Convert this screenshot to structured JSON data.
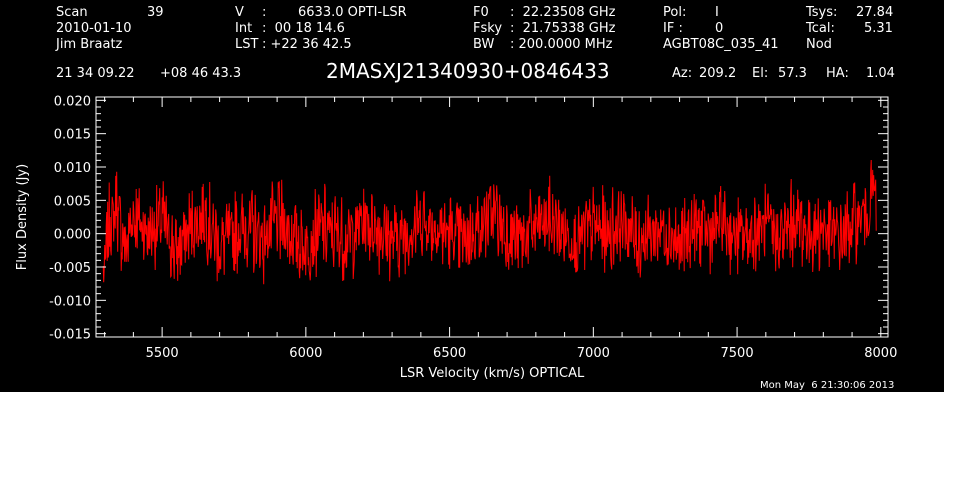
{
  "header": {
    "scan_label": "Scan",
    "scan_number": "39",
    "date": "2010-01-10",
    "observer": "Jim Braatz",
    "v_label": "V",
    "v_sep": ":",
    "v_value": "6633.0 OPTI-LSR",
    "int_label": "Int",
    "int_value": ":  00 18 14.6",
    "lst_label": "LST",
    "lst_value": ": +22 36 42.5",
    "f0_label": "F0",
    "f0_value": ":  22.23508 GHz",
    "fsky_label": "Fsky",
    "fsky_value": ":  21.75338 GHz",
    "bw_label": "BW",
    "bw_value": ": 200.0000 MHz",
    "pol_label": "Pol:",
    "pol_value": "I",
    "if_label": "IF :",
    "if_value": "0",
    "project": "AGBT08C_035_41",
    "tsys_label": "Tsys:",
    "tsys_value": "27.84",
    "tcal_label": "Tcal:",
    "tcal_value": "5.31",
    "mode": "Nod",
    "ra": "21 34 09.22",
    "dec": "+08 46 43.3",
    "source": "2MASXJ21340930+0846433",
    "az_label": "Az:",
    "az_value": "209.2",
    "el_label": "El:",
    "el_value": "57.3",
    "ha_label": "HA:",
    "ha_value": "1.04"
  },
  "timestamp": "Mon May  6 21:30:06 2013",
  "colors": {
    "background": "#000000",
    "axes": "#ffffff",
    "trace": "#ff0000"
  },
  "chart_data": {
    "type": "line",
    "title": "2MASXJ21340930+0846433",
    "xlabel": "LSR Velocity (km/s) OPTICAL",
    "ylabel": "Flux Density (Jy)",
    "xlim": [
      5270,
      8025
    ],
    "ylim": [
      -0.0155,
      0.0205
    ],
    "xticks": [
      5500,
      6000,
      6500,
      7000,
      7500,
      8000
    ],
    "xtick_labels": [
      "5500",
      "6000",
      "6500",
      "7000",
      "7500",
      "8000"
    ],
    "yticks": [
      -0.015,
      -0.01,
      -0.005,
      0.0,
      0.005,
      0.01,
      0.015,
      0.02
    ],
    "ytick_labels": [
      "-0.015",
      "-0.010",
      "-0.005",
      "0.000",
      "0.005",
      "0.010",
      "0.015",
      "0.020"
    ],
    "grid": false,
    "series": [
      {
        "color": "#ff0000",
        "x": [
          5295,
          5300,
          5305,
          5310,
          5315,
          5320,
          5330,
          5340,
          5350,
          5375,
          5400,
          5450,
          5500,
          5550,
          5600,
          5650,
          5700,
          5750,
          5800,
          5850,
          5900,
          5950,
          6000,
          6050,
          6100,
          6150,
          6200,
          6250,
          6300,
          6350,
          6400,
          6450,
          6500,
          6550,
          6600,
          6650,
          6700,
          6750,
          6800,
          6850,
          6900,
          6950,
          7000,
          7050,
          7100,
          7150,
          7200,
          7250,
          7300,
          7350,
          7400,
          7450,
          7500,
          7550,
          7600,
          7650,
          7700,
          7750,
          7800,
          7850,
          7900,
          7920,
          7940,
          7950,
          7960,
          7965,
          7970,
          7975,
          7980,
          7985
        ],
        "values": [
          -0.007,
          -0.005,
          -0.003,
          0.0,
          0.0015,
          0.003,
          0.001,
          0.006,
          0.001,
          -0.002,
          0.003,
          0.0,
          0.002,
          -0.003,
          0.001,
          0.003,
          -0.002,
          0.0,
          0.001,
          -0.001,
          0.002,
          0.0,
          -0.002,
          0.001,
          0.0,
          -0.001,
          0.002,
          0.001,
          -0.001,
          0.0,
          0.002,
          0.001,
          0.0,
          -0.001,
          0.001,
          0.003,
          0.0,
          -0.001,
          0.001,
          0.002,
          0.0,
          -0.001,
          0.001,
          0.0,
          0.002,
          -0.001,
          0.0,
          0.001,
          -0.002,
          0.001,
          0.0,
          0.002,
          -0.001,
          0.0,
          0.001,
          -0.001,
          0.002,
          0.0,
          0.001,
          -0.001,
          0.001,
          0.002,
          0.003,
          0.002,
          0.005,
          0.004,
          0.008,
          0.005,
          0.006,
          0.003
        ]
      }
    ]
  }
}
